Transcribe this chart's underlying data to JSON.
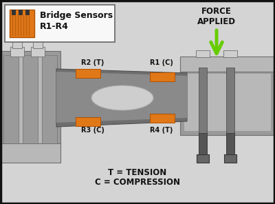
{
  "bg_color": "#d4d4d4",
  "gray_dark": "#6e6e6e",
  "gray_mid": "#9a9a9a",
  "gray_light": "#b8b8b8",
  "gray_lighter": "#cecece",
  "gray_bolt": "#7a7a7a",
  "orange": "#e07818",
  "green_arrow": "#66cc00",
  "white": "#f8f8f8",
  "black": "#111111",
  "title": "Bridge Sensors\nR1-R4",
  "force_label": "FORCE\nAPPLIED",
  "legend_t": "T = TENSION",
  "legend_c": "C = COMPRESSION",
  "r1_label": "R1 (C)",
  "r2_label": "R2 (T)",
  "r3_label": "R3 (C)",
  "r4_label": "R4 (T)"
}
